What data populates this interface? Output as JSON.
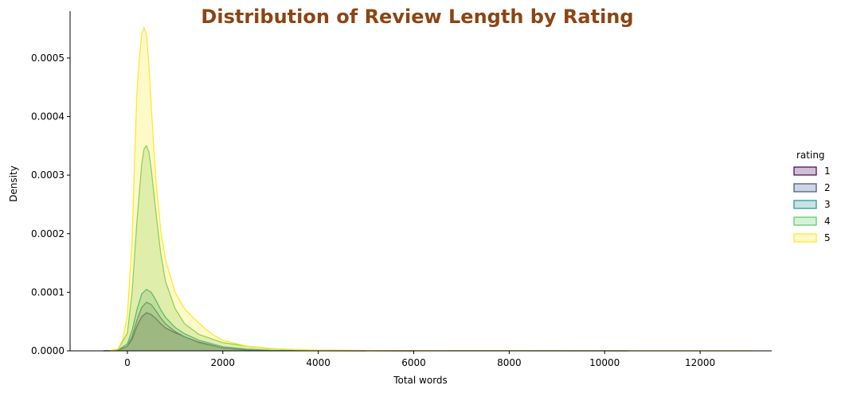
{
  "chart_data": {
    "type": "area",
    "title": "Distribution of Review Length by Rating",
    "title_color": "#8B4513",
    "xlabel": "Total words",
    "ylabel": "Density",
    "xlim": [
      -1200,
      13500
    ],
    "ylim": [
      0,
      0.00058
    ],
    "xticks": [
      0,
      2000,
      4000,
      6000,
      8000,
      10000,
      12000
    ],
    "xtick_labels": [
      "0",
      "2000",
      "4000",
      "6000",
      "8000",
      "10000",
      "12000"
    ],
    "yticks": [
      0,
      0.0001,
      0.0002,
      0.0003,
      0.0004,
      0.0005
    ],
    "ytick_labels": [
      "0.0000",
      "0.0001",
      "0.0002",
      "0.0003",
      "0.0004",
      "0.0005"
    ],
    "grid": false,
    "legend": {
      "title": "rating",
      "placement": "right"
    },
    "series": [
      {
        "name": "1",
        "color": "#440154",
        "fill_opacity": 0.25,
        "x": [
          -500,
          -200,
          0,
          100,
          200,
          300,
          400,
          500,
          600,
          700,
          800,
          1000,
          1200,
          1500,
          2000,
          2500,
          3000,
          4000,
          5000,
          6000
        ],
        "y": [
          0,
          5e-07,
          8e-06,
          2e-05,
          4.2e-05,
          5.8e-05,
          6.5e-05,
          6.2e-05,
          5.5e-05,
          4.6e-05,
          3.9e-05,
          3.1e-05,
          2.4e-05,
          1.5e-05,
          5e-06,
          1.5e-06,
          5e-07,
          2e-07,
          1e-07,
          0
        ]
      },
      {
        "name": "2",
        "color": "#3B528B",
        "fill_opacity": 0.25,
        "x": [
          -400,
          -200,
          0,
          100,
          200,
          300,
          400,
          500,
          600,
          700,
          800,
          1000,
          1200,
          1500,
          2000,
          2500,
          3000,
          4000,
          5000
        ],
        "y": [
          0,
          5e-07,
          8e-06,
          2.5e-05,
          5.2e-05,
          7.4e-05,
          8.3e-05,
          7.9e-05,
          6.8e-05,
          5.6e-05,
          4.6e-05,
          3.3e-05,
          2.4e-05,
          1.4e-05,
          5e-06,
          1.5e-06,
          5e-07,
          1e-07,
          0
        ]
      },
      {
        "name": "3",
        "color": "#21918C",
        "fill_opacity": 0.25,
        "x": [
          -400,
          -200,
          0,
          100,
          200,
          300,
          400,
          500,
          600,
          700,
          800,
          1000,
          1200,
          1500,
          2000,
          2500,
          3000,
          4000,
          6000,
          8000,
          10500
        ],
        "y": [
          0,
          1e-06,
          1.2e-05,
          3.5e-05,
          7e-05,
          9.7e-05,
          0.000105,
          0.0001,
          8.6e-05,
          7e-05,
          5.7e-05,
          4e-05,
          2.9e-05,
          1.8e-05,
          7e-06,
          3e-06,
          1e-06,
          5e-07,
          3e-07,
          2e-07,
          0
        ]
      },
      {
        "name": "4",
        "color": "#5EC962",
        "fill_opacity": 0.25,
        "x": [
          -400,
          -200,
          0,
          100,
          200,
          300,
          350,
          400,
          450,
          500,
          600,
          700,
          800,
          1000,
          1200,
          1500,
          2000,
          2500,
          3000,
          3500,
          4000,
          5000,
          6000
        ],
        "y": [
          0,
          2e-06,
          3e-05,
          0.0001,
          0.00022,
          0.000318,
          0.000345,
          0.00035,
          0.00034,
          0.00031,
          0.000235,
          0.000165,
          0.000118,
          7.2e-05,
          4.6e-05,
          2.8e-05,
          1.4e-05,
          8e-06,
          4e-06,
          2e-06,
          1e-06,
          5e-07,
          0
        ]
      },
      {
        "name": "5",
        "color": "#FDE725",
        "fill_opacity": 0.25,
        "x": [
          -400,
          -200,
          -100,
          0,
          100,
          150,
          200,
          250,
          300,
          350,
          400,
          450,
          500,
          550,
          600,
          700,
          800,
          1000,
          1200,
          1400,
          1600,
          1800,
          2000,
          2500,
          3000,
          3500,
          4000,
          5000,
          7000,
          10000,
          13100
        ],
        "y": [
          0,
          3e-06,
          1.8e-05,
          6e-05,
          0.00019,
          0.00032,
          0.00044,
          0.0005,
          0.00054,
          0.000552,
          0.00054,
          0.00049,
          0.00042,
          0.00035,
          0.00029,
          0.000205,
          0.000155,
          0.0001,
          7.2e-05,
          5.5e-05,
          4e-05,
          2.7e-05,
          1.8e-05,
          8e-06,
          4e-06,
          2e-06,
          1.2e-06,
          6e-07,
          4e-07,
          2e-07,
          0
        ]
      }
    ]
  }
}
